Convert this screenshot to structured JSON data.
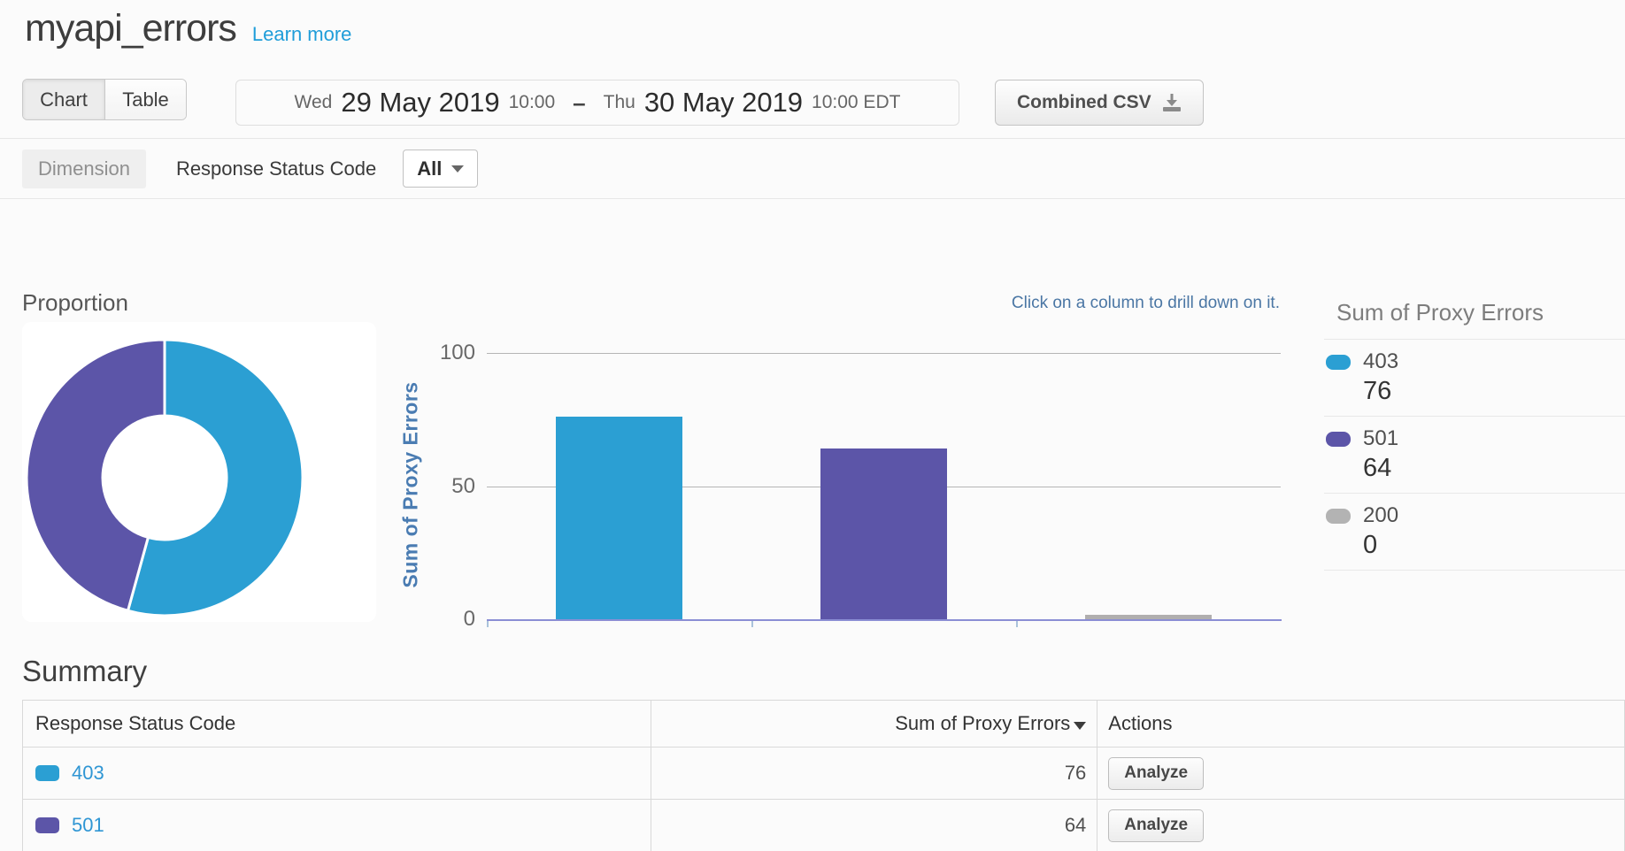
{
  "page": {
    "title": "myapi_errors",
    "learn_more": "Learn more",
    "tabs": {
      "chart": "Chart",
      "table": "Table"
    },
    "date_range": {
      "start_day": "Wed",
      "start_date": "29 May 2019",
      "start_time": "10:00",
      "separator": "–",
      "end_day": "Thu",
      "end_date": "30 May 2019",
      "end_time": "10:00 EDT"
    },
    "csv_button": "Combined CSV",
    "dimension": {
      "label": "Dimension",
      "name": "Response Status Code",
      "filter_value": "All"
    }
  },
  "chart_area": {
    "proportion_label": "Proportion",
    "drill_hint": "Click on a column to drill down on it.",
    "y_axis_label": "Sum of Proxy Errors"
  },
  "legend": {
    "title": "Sum of Proxy Errors",
    "items": [
      {
        "label": "403",
        "value": "76",
        "color": "#2b9fd3"
      },
      {
        "label": "501",
        "value": "64",
        "color": "#5c55a8"
      },
      {
        "label": "200",
        "value": "0",
        "color": "#b3b3b3"
      }
    ]
  },
  "summary": {
    "heading": "Summary",
    "columns": [
      "Response Status Code",
      "Sum of Proxy Errors",
      "Actions"
    ],
    "rows": [
      {
        "code": "403",
        "color": "#2b9fd3",
        "value": "76",
        "action": "Analyze"
      },
      {
        "code": "501",
        "color": "#5c55a8",
        "value": "64",
        "action": "Analyze"
      }
    ]
  },
  "chart_data": [
    {
      "type": "pie",
      "title": "Proportion",
      "labels": [
        "403",
        "501",
        "200"
      ],
      "values": [
        76,
        64,
        0
      ],
      "colors": [
        "#2b9fd3",
        "#5c55a8",
        "#b3b3b3"
      ],
      "donut": true,
      "legend_position": "right"
    },
    {
      "type": "bar",
      "categories": [
        "403",
        "501",
        "200"
      ],
      "values": [
        76,
        64,
        0
      ],
      "colors": [
        "#2b9fd3",
        "#5c55a8",
        "#b0aeae"
      ],
      "title": "",
      "xlabel": "",
      "ylabel": "Sum of Proxy Errors",
      "ylim": [
        0,
        100
      ],
      "yticks": [
        0,
        50,
        100
      ],
      "grid": true
    }
  ]
}
